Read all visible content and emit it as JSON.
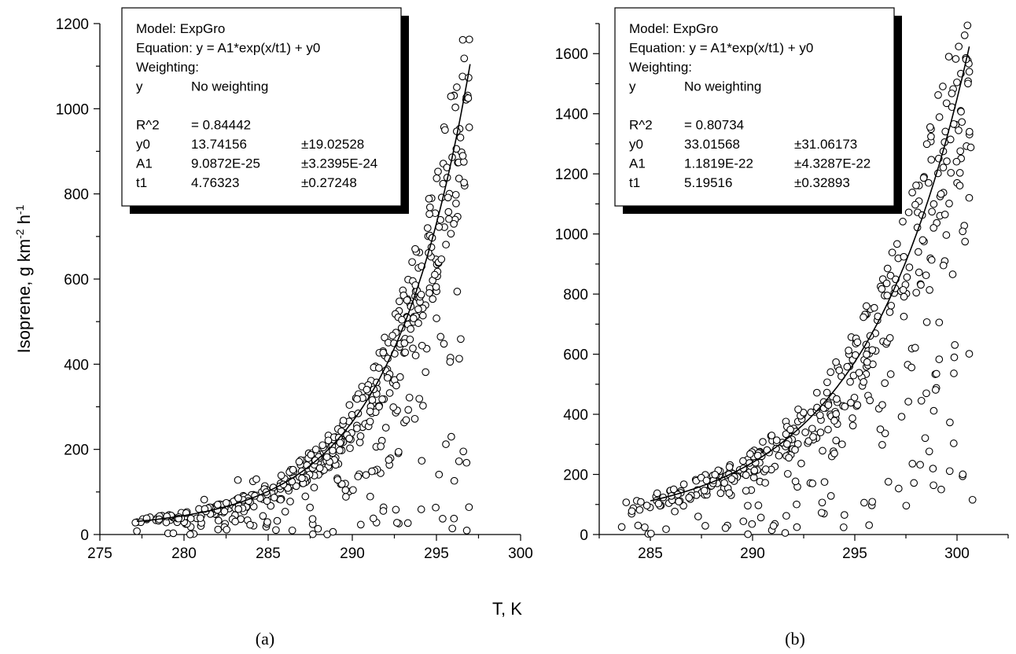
{
  "ylabel": "Isoprene, g km",
  "ylabel_sup1": "-2",
  "ylabel_mid": " h",
  "ylabel_sup2": "-1",
  "xlabel": "T, K",
  "colors": {
    "axis": "#000000",
    "curve": "#000000",
    "marker": "#000000",
    "shadow": "#000000"
  },
  "chart_data": [
    {
      "type": "scatter",
      "panel_label": "(a)",
      "xlim": [
        275,
        300
      ],
      "ylim": [
        0,
        1200
      ],
      "xticks": [
        275,
        280,
        285,
        290,
        295,
        300
      ],
      "yticks": [
        0,
        200,
        400,
        600,
        800,
        1000,
        1200
      ],
      "fit": {
        "model": "ExpGro",
        "y0": 13.74156,
        "A1": 9.0872e-25,
        "t1": 4.76323,
        "x_range": [
          277.2,
          297
        ]
      },
      "cloud": {
        "seed": 7,
        "n": 520,
        "x_range": [
          277,
          297
        ]
      },
      "points": [
        [
          277.2,
          8
        ],
        [
          279.2,
          40
        ],
        [
          280.4,
          18
        ],
        [
          281,
          20
        ],
        [
          281.2,
          82
        ],
        [
          282.2,
          70
        ],
        [
          283.2,
          128
        ],
        [
          283.6,
          75
        ],
        [
          284.1,
          125
        ],
        [
          284.3,
          130
        ]
      ],
      "legend_box": {
        "lines": [
          [
            "Model: ExpGro",
            "",
            ""
          ],
          [
            "Equation: y = A1*exp(x/t1) + y0",
            "",
            ""
          ],
          [
            "Weighting:",
            "",
            ""
          ],
          [
            "y",
            "No weighting",
            ""
          ],
          [
            "",
            "",
            ""
          ],
          [
            "R^2",
            "=  0.84442",
            ""
          ],
          [
            "y0",
            "13.74156",
            "±19.02528"
          ],
          [
            "A1",
            "9.0872E-25",
            "±3.2395E-24"
          ],
          [
            "t1",
            "4.76323",
            "±0.27248"
          ]
        ]
      }
    },
    {
      "type": "scatter",
      "panel_label": "(b)",
      "xlim": [
        282.5,
        302.5
      ],
      "ylim": [
        0,
        1700
      ],
      "xticks": [
        285,
        290,
        295,
        300
      ],
      "yticks": [
        0,
        200,
        400,
        600,
        800,
        1000,
        1200,
        1400,
        1600
      ],
      "fit": {
        "model": "ExpGro",
        "y0": 33.01568,
        "A1": 1.1819e-22,
        "t1": 5.19516,
        "x_range": [
          285,
          300.6
        ]
      },
      "cloud": {
        "seed": 13,
        "n": 460,
        "x_range": [
          283.5,
          300.8
        ]
      },
      "points": [
        [
          283.6,
          25
        ],
        [
          284.4,
          30
        ],
        [
          298.5,
          470
        ],
        [
          299.4,
          910
        ],
        [
          300.6,
          1540
        ]
      ],
      "legend_box": {
        "lines": [
          [
            "Model: ExpGro",
            "",
            ""
          ],
          [
            "Equation: y = A1*exp(x/t1) + y0",
            "",
            ""
          ],
          [
            "Weighting:",
            "",
            ""
          ],
          [
            "y",
            "No weighting",
            ""
          ],
          [
            "",
            "",
            ""
          ],
          [
            "R^2",
            "=  0.80734",
            ""
          ],
          [
            "y0",
            "33.01568",
            "±31.06173"
          ],
          [
            "A1",
            "1.1819E-22",
            "±4.3287E-22"
          ],
          [
            "t1",
            "5.19516",
            "±0.32893"
          ]
        ]
      }
    }
  ]
}
